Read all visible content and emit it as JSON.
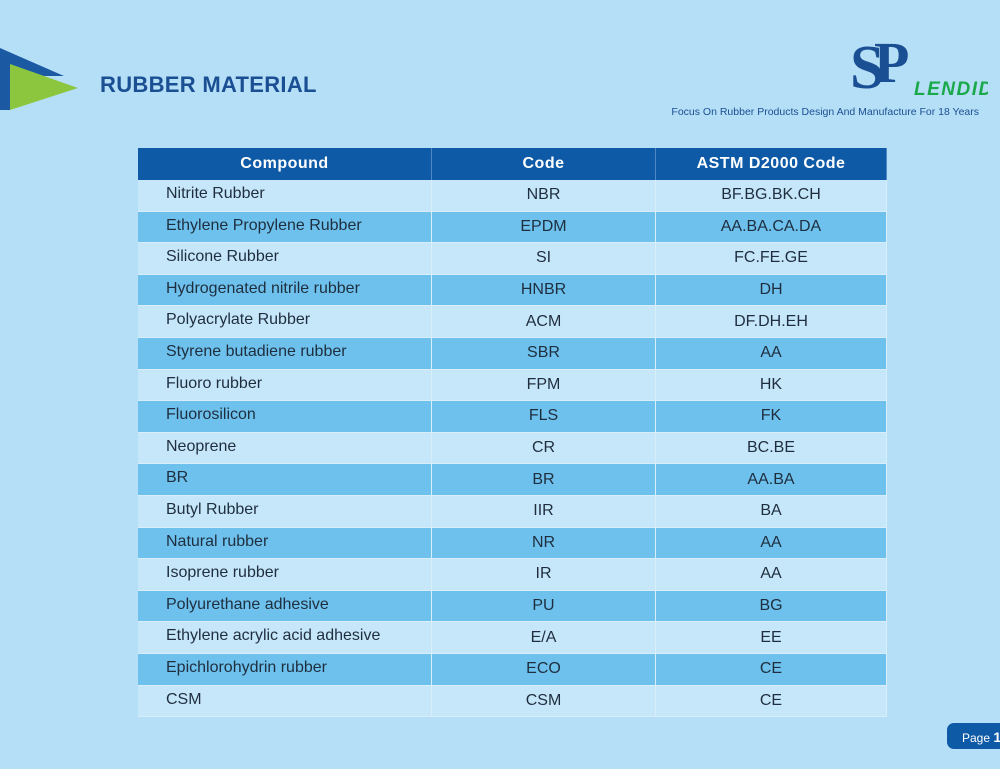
{
  "header": {
    "title": "RUBBER MATERIAL",
    "logo_text": "SPLENDID",
    "logo_suffix": "LENDID",
    "tagline": "Focus On Rubber Products Design And Manufacture For 18 Years"
  },
  "table": {
    "columns": [
      "Compound",
      "Code",
      "ASTM D2000 Code"
    ],
    "rows": [
      [
        "Nitrite Rubber",
        "NBR",
        "BF.BG.BK.CH"
      ],
      [
        "Ethylene Propylene Rubber",
        "EPDM",
        "AA.BA.CA.DA"
      ],
      [
        "Silicone Rubber",
        "SI",
        "FC.FE.GE"
      ],
      [
        "Hydrogenated nitrile rubber",
        "HNBR",
        "DH"
      ],
      [
        "Polyacrylate Rubber",
        "ACM",
        "DF.DH.EH"
      ],
      [
        "Styrene butadiene rubber",
        "SBR",
        "AA"
      ],
      [
        "Fluoro rubber",
        "FPM",
        "HK"
      ],
      [
        "Fluorosilicon",
        "FLS",
        "FK"
      ],
      [
        "Neoprene",
        "CR",
        "BC.BE"
      ],
      [
        "BR",
        "BR",
        "AA.BA"
      ],
      [
        "Butyl Rubber",
        "IIR",
        "BA"
      ],
      [
        "Natural rubber",
        "NR",
        "AA"
      ],
      [
        "Isoprene rubber",
        "IR",
        "AA"
      ],
      [
        "Polyurethane adhesive",
        "PU",
        "BG"
      ],
      [
        "Ethylene acrylic acid adhesive",
        "E/A",
        "EE"
      ],
      [
        "Epichlorohydrin rubber",
        "ECO",
        "CE"
      ],
      [
        "CSM",
        "CSM",
        "CE"
      ]
    ]
  },
  "footer": {
    "page_label": "Page",
    "page_number": "1"
  },
  "colors": {
    "background": "#b5dff6",
    "header": "#0e5aa6",
    "row_dark": "#6dc1ec",
    "row_light": "#c6e7f9",
    "accent_green": "#8cc63f",
    "logo_green": "#1aa84a"
  }
}
